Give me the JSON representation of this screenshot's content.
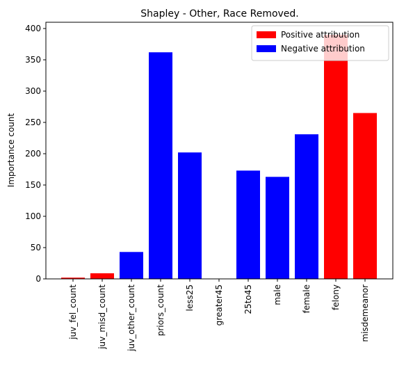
{
  "chart_data": {
    "type": "bar",
    "title": "Shapley - Other, Race Removed.",
    "xlabel": "",
    "ylabel": "Importance count",
    "ylim": [
      0,
      410
    ],
    "yticks": [
      0,
      50,
      100,
      150,
      200,
      250,
      300,
      350,
      400
    ],
    "grid": false,
    "legend_position": "top-right",
    "categories": [
      "juv_fel_count",
      "juv_misd_count",
      "juv_other_count",
      "priors_count",
      "less25",
      "greater45",
      "25to45",
      "male",
      "female",
      "felony",
      "misdemeanor"
    ],
    "values": [
      2,
      9,
      43,
      362,
      202,
      0,
      173,
      163,
      231,
      390,
      265
    ],
    "attribution": [
      "positive",
      "positive",
      "negative",
      "negative",
      "negative",
      "negative",
      "negative",
      "negative",
      "negative",
      "positive",
      "positive"
    ],
    "legend": [
      {
        "label": "Positive attribution",
        "key": "positive",
        "color": "#ff0000"
      },
      {
        "label": "Negative attribution",
        "key": "negative",
        "color": "#0000ff"
      }
    ],
    "colors": {
      "positive": "#ff0000",
      "negative": "#0000ff"
    }
  }
}
